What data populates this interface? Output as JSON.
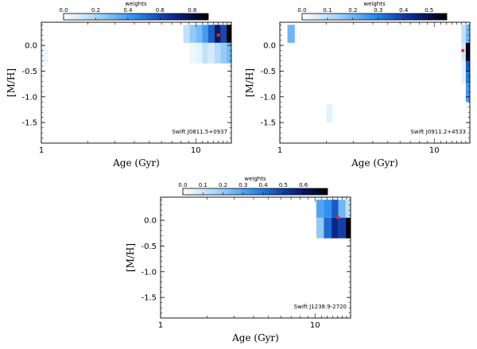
{
  "chart_data": [
    {
      "type": "heatmap",
      "title": "Swift J0811.5+0937",
      "xlabel": "Age (Gyr)",
      "ylabel": "[M/H]",
      "xscale": "log",
      "xlim": [
        1,
        17
      ],
      "ylim": [
        -1.9,
        0.45
      ],
      "x_ticks": [
        1,
        10
      ],
      "x_tick_labels": [
        "1",
        "10"
      ],
      "y_ticks": [
        0.0,
        -0.5,
        -1.0,
        -1.5
      ],
      "y_tick_labels": [
        "0.0",
        "-0.5",
        "-1.0",
        "-1.5"
      ],
      "colorbar": {
        "label": "weights",
        "range": [
          0,
          0.9
        ],
        "ticks": [
          0,
          0.2,
          0.4,
          0.6,
          0.8
        ],
        "tick_labels": [
          "0.0",
          "0.2",
          "0.4",
          "0.6",
          "0.8"
        ]
      },
      "cells": [
        {
          "age": [
            1.0,
            1.1
          ],
          "mh": [
            -0.35,
            0.0
          ],
          "weight": 0.03
        },
        {
          "age": [
            8.3,
            9.1
          ],
          "mh": [
            0.05,
            0.4
          ],
          "weight": 0.15
        },
        {
          "age": [
            9.1,
            10.0
          ],
          "mh": [
            0.05,
            0.4
          ],
          "weight": 0.25
        },
        {
          "age": [
            10.0,
            11.0
          ],
          "mh": [
            0.05,
            0.4
          ],
          "weight": 0.3
        },
        {
          "age": [
            11.0,
            12.0
          ],
          "mh": [
            0.05,
            0.4
          ],
          "weight": 0.4
        },
        {
          "age": [
            12.0,
            13.2
          ],
          "mh": [
            0.05,
            0.4
          ],
          "weight": 0.55
        },
        {
          "age": [
            13.2,
            14.5
          ],
          "mh": [
            0.05,
            0.4
          ],
          "weight": 0.75
        },
        {
          "age": [
            14.5,
            15.8
          ],
          "mh": [
            0.05,
            0.4
          ],
          "weight": 0.6
        },
        {
          "age": [
            15.8,
            17.0
          ],
          "mh": [
            0.05,
            0.4
          ],
          "weight": 0.9
        },
        {
          "age": [
            9.1,
            10.0
          ],
          "mh": [
            -0.35,
            0.05
          ],
          "weight": 0.04
        },
        {
          "age": [
            10.0,
            11.0
          ],
          "mh": [
            -0.35,
            0.05
          ],
          "weight": 0.06
        },
        {
          "age": [
            11.0,
            12.0
          ],
          "mh": [
            -0.35,
            0.05
          ],
          "weight": 0.15
        },
        {
          "age": [
            12.0,
            13.2
          ],
          "mh": [
            -0.35,
            0.05
          ],
          "weight": 0.1
        },
        {
          "age": [
            13.2,
            14.5
          ],
          "mh": [
            -0.35,
            0.05
          ],
          "weight": 0.18
        },
        {
          "age": [
            14.5,
            15.8
          ],
          "mh": [
            -0.35,
            0.05
          ],
          "weight": 0.25
        },
        {
          "age": [
            15.8,
            17.0
          ],
          "mh": [
            -0.35,
            0.05
          ],
          "weight": 0.3
        }
      ],
      "marker": {
        "age": 14.0,
        "mh": 0.2,
        "color": "#ff2020"
      }
    },
    {
      "type": "heatmap",
      "title": "Swift J0911.2+4533",
      "xlabel": "Age (Gyr)",
      "ylabel": "[M/H]",
      "xscale": "log",
      "xlim": [
        1,
        17
      ],
      "ylim": [
        -1.9,
        0.45
      ],
      "x_ticks": [
        1,
        10
      ],
      "x_tick_labels": [
        "1",
        "10"
      ],
      "y_ticks": [
        0.0,
        -0.5,
        -1.0,
        -1.5
      ],
      "y_tick_labels": [
        "0.0",
        "-0.5",
        "-1.0",
        "-1.5"
      ],
      "colorbar": {
        "label": "weights",
        "range": [
          0,
          0.57
        ],
        "ticks": [
          0,
          0.1,
          0.2,
          0.3,
          0.4,
          0.5
        ],
        "tick_labels": [
          "0.0",
          "0.1",
          "0.2",
          "0.3",
          "0.4",
          "0.5"
        ]
      },
      "cells": [
        {
          "age": [
            1.12,
            1.25
          ],
          "mh": [
            0.05,
            0.4
          ],
          "weight": 0.2
        },
        {
          "age": [
            2.0,
            2.2
          ],
          "mh": [
            -1.5,
            -1.15
          ],
          "weight": 0.04
        },
        {
          "age": [
            15.0,
            16.0
          ],
          "mh": [
            0.05,
            0.4
          ],
          "weight": 0.1
        },
        {
          "age": [
            15.0,
            16.0
          ],
          "mh": [
            -0.3,
            0.05
          ],
          "weight": 0.07
        },
        {
          "age": [
            15.0,
            16.0
          ],
          "mh": [
            -0.75,
            -0.3
          ],
          "weight": 0.04
        },
        {
          "age": [
            16.0,
            17.0
          ],
          "mh": [
            0.05,
            0.4
          ],
          "weight": 0.2
        },
        {
          "age": [
            16.0,
            17.0
          ],
          "mh": [
            -0.3,
            0.05
          ],
          "weight": 0.55
        },
        {
          "age": [
            16.0,
            17.0
          ],
          "mh": [
            -0.5,
            -0.3
          ],
          "weight": 0.35
        },
        {
          "age": [
            16.0,
            17.0
          ],
          "mh": [
            -0.75,
            -0.5
          ],
          "weight": 0.3
        },
        {
          "age": [
            16.0,
            17.0
          ],
          "mh": [
            -1.1,
            -0.75
          ],
          "weight": 0.25
        }
      ],
      "marker": {
        "age": 15.3,
        "mh": -0.1,
        "color": "#ff2020"
      }
    },
    {
      "type": "heatmap",
      "title": "Swift J1238.9-2720",
      "xlabel": "Age (Gyr)",
      "ylabel": "[M/H]",
      "xscale": "log",
      "xlim": [
        1,
        17
      ],
      "ylim": [
        -1.9,
        0.45
      ],
      "x_ticks": [
        1,
        10
      ],
      "x_tick_labels": [
        "1",
        "10"
      ],
      "y_ticks": [
        0.0,
        -0.5,
        -1.0,
        -1.5
      ],
      "y_tick_labels": [
        "0.0",
        "-0.5",
        "-1.0",
        "-1.5"
      ],
      "colorbar": {
        "label": "weights",
        "range": [
          0,
          0.72
        ],
        "ticks": [
          0,
          0.1,
          0.2,
          0.3,
          0.4,
          0.5,
          0.6
        ],
        "tick_labels": [
          "0.0",
          "0.1",
          "0.2",
          "0.3",
          "0.4",
          "0.5",
          "0.6"
        ]
      },
      "cells": [
        {
          "age": [
            10.2,
            11.4
          ],
          "mh": [
            0.05,
            0.4
          ],
          "weight": 0.3
        },
        {
          "age": [
            11.4,
            12.8
          ],
          "mh": [
            0.05,
            0.4
          ],
          "weight": 0.35
        },
        {
          "age": [
            12.8,
            14.2
          ],
          "mh": [
            0.05,
            0.4
          ],
          "weight": 0.45
        },
        {
          "age": [
            14.2,
            15.8
          ],
          "mh": [
            0.05,
            0.4
          ],
          "weight": 0.25
        },
        {
          "age": [
            15.8,
            17.0
          ],
          "mh": [
            0.05,
            0.4
          ],
          "weight": 0.12
        },
        {
          "age": [
            10.2,
            11.4
          ],
          "mh": [
            -0.35,
            0.05
          ],
          "weight": 0.2
        },
        {
          "age": [
            11.4,
            12.8
          ],
          "mh": [
            -0.35,
            0.05
          ],
          "weight": 0.42
        },
        {
          "age": [
            12.8,
            14.2
          ],
          "mh": [
            -0.35,
            0.05
          ],
          "weight": 0.55
        },
        {
          "age": [
            14.2,
            15.8
          ],
          "mh": [
            -0.35,
            0.05
          ],
          "weight": 0.5
        },
        {
          "age": [
            15.8,
            17.0
          ],
          "mh": [
            -0.35,
            0.05
          ],
          "weight": 0.72
        }
      ],
      "marker": {
        "age": 14.1,
        "mh": 0.05,
        "color": "#ff2020"
      }
    }
  ]
}
